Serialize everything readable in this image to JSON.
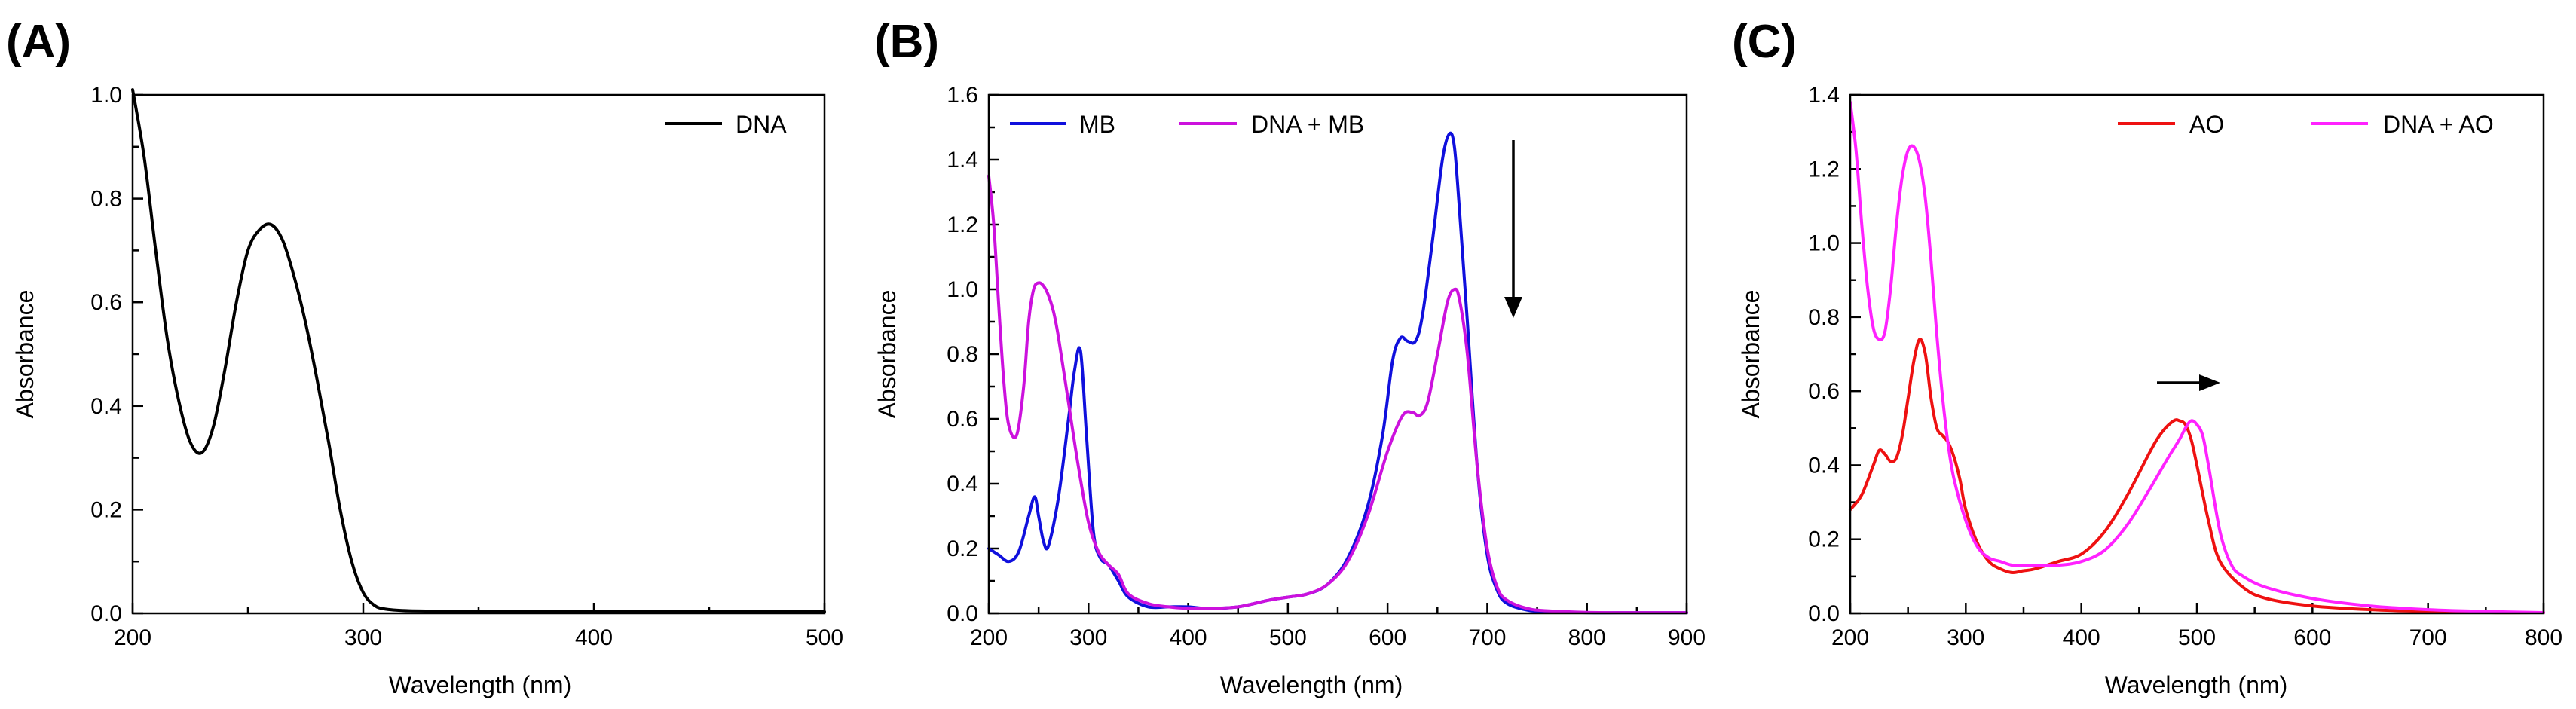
{
  "colors": {
    "DNA": "#000000",
    "MB": "#1010dd",
    "DNA + MB": "#cc11dd",
    "AO": "#ee1111",
    "DNA + AO": "#ff22ff"
  },
  "chart_data": [
    {
      "type": "line",
      "panel_label": "(A)",
      "xlabel": "Wavelength (nm)",
      "ylabel": "Absorbance",
      "xlim": [
        200,
        500
      ],
      "ylim": [
        0,
        1.0
      ],
      "xticks": [
        "200",
        "300",
        "400",
        "500"
      ],
      "yticks": [
        "0.0",
        "0.2",
        "0.4",
        "0.6",
        "0.8",
        "1.0"
      ],
      "legend_position": "top-right",
      "series": [
        {
          "name": "DNA",
          "color": "#000000",
          "x": [
            200,
            205,
            210,
            215,
            220,
            225,
            230,
            235,
            240,
            245,
            250,
            255,
            260,
            265,
            270,
            275,
            280,
            285,
            290,
            295,
            300,
            305,
            310,
            320,
            340,
            360,
            380,
            400,
            420,
            440,
            460,
            480,
            500
          ],
          "y": [
            1.01,
            0.88,
            0.7,
            0.53,
            0.41,
            0.33,
            0.31,
            0.36,
            0.47,
            0.6,
            0.7,
            0.74,
            0.75,
            0.72,
            0.65,
            0.56,
            0.45,
            0.33,
            0.2,
            0.1,
            0.04,
            0.015,
            0.008,
            0.005,
            0.004,
            0.004,
            0.003,
            0.003,
            0.003,
            0.003,
            0.003,
            0.003,
            0.003
          ]
        }
      ],
      "annotations": []
    },
    {
      "type": "line",
      "panel_label": "(B)",
      "xlabel": "Wavelength (nm)",
      "ylabel": "Absorbance",
      "xlim": [
        200,
        900
      ],
      "ylim": [
        0,
        1.6
      ],
      "xticks": [
        "200",
        "300",
        "400",
        "500",
        "600",
        "700",
        "800",
        "900"
      ],
      "yticks": [
        "0.0",
        "0.2",
        "0.4",
        "0.6",
        "0.8",
        "1.0",
        "1.2",
        "1.4",
        "1.6"
      ],
      "legend_position": "top-left",
      "series": [
        {
          "name": "MB",
          "color": "#1010dd",
          "x": [
            200,
            210,
            220,
            230,
            240,
            246,
            250,
            255,
            260,
            270,
            280,
            286,
            292,
            298,
            305,
            312,
            320,
            330,
            340,
            360,
            380,
            400,
            420,
            450,
            480,
            500,
            520,
            540,
            560,
            580,
            595,
            605,
            613,
            620,
            628,
            635,
            645,
            655,
            662,
            667,
            672,
            680,
            690,
            700,
            710,
            720,
            740,
            760,
            800,
            850,
            900
          ],
          "y": [
            0.2,
            0.18,
            0.16,
            0.19,
            0.3,
            0.36,
            0.3,
            0.22,
            0.21,
            0.36,
            0.6,
            0.75,
            0.81,
            0.55,
            0.25,
            0.17,
            0.15,
            0.1,
            0.05,
            0.02,
            0.02,
            0.02,
            0.015,
            0.02,
            0.04,
            0.05,
            0.06,
            0.09,
            0.17,
            0.33,
            0.55,
            0.78,
            0.85,
            0.84,
            0.84,
            0.92,
            1.15,
            1.4,
            1.48,
            1.44,
            1.25,
            0.9,
            0.45,
            0.18,
            0.07,
            0.03,
            0.01,
            0.005,
            0.002,
            0.002,
            0.002
          ]
        },
        {
          "name": "DNA + MB",
          "color": "#cc11dd",
          "x": [
            200,
            205,
            210,
            215,
            220,
            228,
            235,
            240,
            245,
            250,
            255,
            260,
            265,
            270,
            280,
            290,
            300,
            310,
            320,
            330,
            340,
            360,
            380,
            400,
            420,
            450,
            480,
            500,
            520,
            540,
            560,
            580,
            600,
            615,
            625,
            632,
            640,
            650,
            660,
            667,
            672,
            680,
            690,
            700,
            710,
            720,
            740,
            760,
            800,
            850,
            900
          ],
          "y": [
            1.35,
            1.2,
            0.95,
            0.72,
            0.58,
            0.55,
            0.7,
            0.9,
            1.0,
            1.02,
            1.01,
            0.98,
            0.93,
            0.85,
            0.65,
            0.45,
            0.28,
            0.19,
            0.15,
            0.12,
            0.06,
            0.03,
            0.02,
            0.015,
            0.015,
            0.02,
            0.04,
            0.05,
            0.06,
            0.09,
            0.16,
            0.3,
            0.5,
            0.61,
            0.62,
            0.61,
            0.65,
            0.8,
            0.96,
            1.0,
            0.97,
            0.8,
            0.45,
            0.2,
            0.08,
            0.04,
            0.015,
            0.008,
            0.003,
            0.002,
            0.002
          ]
        }
      ],
      "annotations": [
        {
          "type": "arrow",
          "direction": "down",
          "near_x": 720
        }
      ]
    },
    {
      "type": "line",
      "panel_label": "(C)",
      "xlabel": "Wavelength (nm)",
      "ylabel": "Absorbance",
      "xlim": [
        200,
        800
      ],
      "ylim": [
        0,
        1.4
      ],
      "xticks": [
        "200",
        "300",
        "400",
        "500",
        "600",
        "700",
        "800"
      ],
      "yticks": [
        "0.0",
        "0.2",
        "0.4",
        "0.6",
        "0.8",
        "1.0",
        "1.2",
        "1.4"
      ],
      "legend_position": "top-right",
      "series": [
        {
          "name": "AO",
          "color": "#ee1111",
          "x": [
            200,
            210,
            220,
            225,
            230,
            235,
            240,
            245,
            250,
            255,
            260,
            265,
            270,
            275,
            280,
            285,
            290,
            295,
            300,
            310,
            320,
            330,
            340,
            350,
            360,
            380,
            400,
            420,
            440,
            460,
            470,
            480,
            485,
            490,
            495,
            500,
            510,
            520,
            540,
            560,
            600,
            650,
            700,
            750,
            800
          ],
          "y": [
            0.28,
            0.32,
            0.4,
            0.44,
            0.43,
            0.41,
            0.42,
            0.48,
            0.58,
            0.68,
            0.74,
            0.7,
            0.58,
            0.5,
            0.48,
            0.46,
            0.42,
            0.36,
            0.28,
            0.19,
            0.14,
            0.12,
            0.11,
            0.115,
            0.12,
            0.14,
            0.16,
            0.22,
            0.32,
            0.44,
            0.49,
            0.52,
            0.52,
            0.51,
            0.47,
            0.4,
            0.25,
            0.14,
            0.07,
            0.04,
            0.02,
            0.01,
            0.005,
            0.002,
            0.002
          ]
        },
        {
          "name": "DNA + AO",
          "color": "#ff22ff",
          "x": [
            200,
            205,
            210,
            215,
            220,
            225,
            230,
            235,
            240,
            245,
            250,
            255,
            260,
            265,
            270,
            275,
            280,
            285,
            290,
            300,
            310,
            320,
            330,
            340,
            350,
            360,
            380,
            400,
            420,
            440,
            460,
            475,
            485,
            490,
            495,
            500,
            505,
            510,
            520,
            530,
            540,
            560,
            600,
            650,
            700,
            750,
            800
          ],
          "y": [
            1.38,
            1.25,
            1.05,
            0.88,
            0.77,
            0.74,
            0.76,
            0.88,
            1.05,
            1.18,
            1.25,
            1.26,
            1.22,
            1.12,
            0.95,
            0.75,
            0.58,
            0.45,
            0.36,
            0.25,
            0.18,
            0.15,
            0.14,
            0.13,
            0.13,
            0.13,
            0.13,
            0.14,
            0.17,
            0.24,
            0.34,
            0.42,
            0.47,
            0.5,
            0.52,
            0.51,
            0.48,
            0.4,
            0.22,
            0.13,
            0.1,
            0.07,
            0.04,
            0.02,
            0.01,
            0.005,
            0.002
          ]
        }
      ],
      "annotations": [
        {
          "type": "arrow",
          "direction": "right",
          "near_x": 470
        }
      ]
    }
  ]
}
